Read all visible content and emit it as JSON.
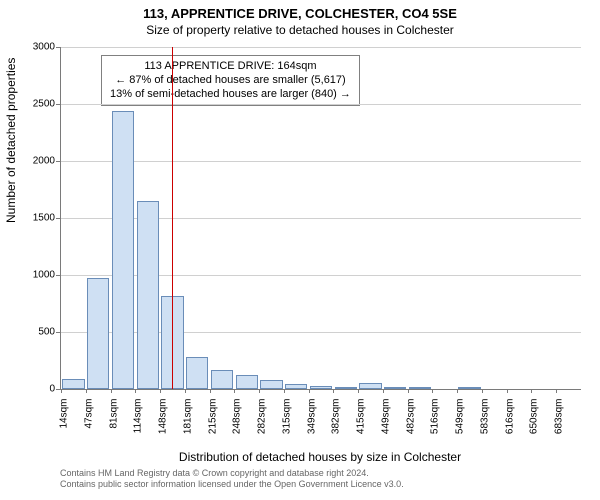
{
  "title_main": "113, APPRENTICE DRIVE, COLCHESTER, CO4 5SE",
  "title_sub": "Size of property relative to detached houses in Colchester",
  "ylabel": "Number of detached properties",
  "xlabel": "Distribution of detached houses by size in Colchester",
  "footer_line1": "Contains HM Land Registry data © Crown copyright and database right 2024.",
  "footer_line2": "Contains public sector information licensed under the Open Government Licence v3.0.",
  "chart": {
    "type": "histogram",
    "bar_fill": "#cfe0f3",
    "bar_stroke": "#6a8db8",
    "grid_color": "#d0d0d0",
    "axis_color": "#7a7a7a",
    "refline_color": "#cc0000",
    "refline_x": 164,
    "ymax": 3000,
    "ytick_step": 500,
    "yticks": [
      0,
      500,
      1000,
      1500,
      2000,
      2500,
      3000
    ],
    "x_start": 14,
    "x_step": 33.5,
    "bar_width_ratio": 0.9,
    "n_bars": 21,
    "values": [
      85,
      970,
      2440,
      1650,
      820,
      280,
      170,
      120,
      80,
      45,
      30,
      15,
      55,
      5,
      5,
      0,
      10,
      0,
      0,
      0,
      0
    ],
    "xticks": [
      "14sqm",
      "47sqm",
      "81sqm",
      "114sqm",
      "148sqm",
      "181sqm",
      "215sqm",
      "248sqm",
      "282sqm",
      "315sqm",
      "349sqm",
      "382sqm",
      "415sqm",
      "449sqm",
      "482sqm",
      "516sqm",
      "549sqm",
      "583sqm",
      "616sqm",
      "650sqm",
      "683sqm"
    ]
  },
  "info_box": {
    "line1": "113 APPRENTICE DRIVE: 164sqm",
    "line2": "← 87% of detached houses are smaller (5,617)",
    "line3": "13% of semi-detached houses are larger (840) →"
  }
}
